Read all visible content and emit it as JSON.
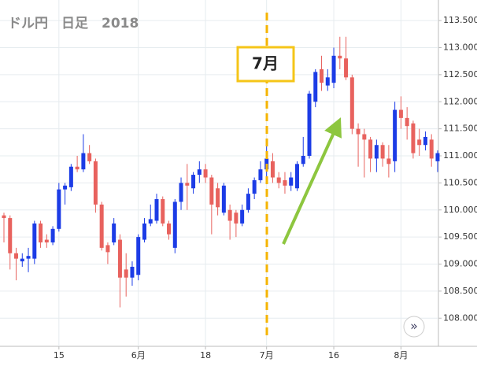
{
  "chart_data": {
    "type": "candlestick",
    "title": "ドル円　日足　2018",
    "annotation": "7月",
    "button": "»",
    "categories": [
      null,
      null,
      null,
      null,
      null,
      null,
      null,
      null,
      null,
      "15",
      null,
      null,
      null,
      null,
      null,
      null,
      null,
      null,
      null,
      null,
      null,
      null,
      "6月",
      null,
      null,
      null,
      null,
      null,
      null,
      null,
      null,
      null,
      null,
      "18",
      null,
      null,
      null,
      null,
      null,
      null,
      null,
      null,
      null,
      "7月",
      null,
      null,
      null,
      null,
      null,
      null,
      null,
      null,
      null,
      null,
      "16",
      null,
      null,
      null,
      null,
      null,
      null,
      null,
      null,
      null,
      null,
      "8月",
      null,
      null,
      null,
      null,
      null,
      null
    ],
    "open": [
      109.9,
      109.85,
      109.2,
      109.05,
      109.1,
      109.1,
      109.75,
      109.45,
      109.4,
      109.65,
      110.38,
      110.42,
      110.8,
      110.75,
      111.05,
      110.9,
      110.1,
      109.35,
      109.4,
      109.45,
      108.9,
      108.75,
      108.8,
      109.45,
      109.75,
      109.8,
      110.2,
      109.75,
      109.3,
      110.15,
      110.5,
      110.4,
      110.65,
      110.75,
      110.6,
      110.4,
      109.95,
      110.0,
      109.95,
      109.75,
      110.0,
      110.3,
      110.55,
      110.75,
      110.9,
      110.6,
      110.55,
      110.45,
      110.4,
      110.85,
      111.0,
      112.0,
      112.6,
      112.3,
      112.35,
      112.85,
      112.8,
      112.45,
      111.5,
      111.4,
      111.3,
      110.95,
      111.2,
      110.95,
      110.9,
      111.85,
      111.7,
      111.6,
      111.3,
      111.2,
      111.3,
      110.9
    ],
    "high": [
      109.95,
      109.9,
      109.3,
      109.2,
      109.3,
      109.8,
      109.8,
      109.55,
      109.7,
      110.5,
      110.5,
      110.85,
      111.0,
      111.4,
      111.2,
      110.95,
      110.15,
      109.4,
      109.85,
      109.55,
      109.2,
      109.05,
      109.55,
      109.85,
      110.1,
      110.3,
      110.25,
      109.8,
      110.2,
      110.6,
      110.85,
      110.7,
      110.9,
      110.85,
      110.65,
      110.5,
      110.5,
      110.1,
      110.0,
      110.1,
      110.4,
      110.6,
      110.9,
      111.2,
      111.05,
      110.7,
      110.7,
      110.7,
      110.9,
      111.35,
      112.2,
      112.6,
      112.85,
      112.6,
      113.0,
      113.2,
      113.2,
      112.5,
      111.6,
      111.5,
      111.35,
      111.3,
      111.25,
      111.2,
      112.0,
      112.1,
      111.9,
      111.65,
      111.5,
      111.45,
      111.4,
      111.1
    ],
    "low": [
      109.4,
      108.9,
      108.7,
      108.95,
      108.85,
      109.0,
      109.3,
      109.3,
      109.35,
      109.6,
      110.1,
      110.35,
      110.7,
      110.7,
      110.85,
      109.95,
      109.25,
      109.0,
      109.35,
      108.2,
      108.4,
      108.6,
      108.7,
      109.4,
      109.7,
      109.75,
      109.7,
      109.45,
      109.2,
      110.0,
      110.0,
      110.3,
      110.5,
      110.5,
      109.55,
      109.9,
      109.9,
      109.45,
      109.5,
      109.7,
      109.95,
      110.2,
      110.5,
      110.6,
      110.5,
      110.4,
      110.3,
      110.35,
      110.35,
      110.8,
      110.95,
      111.9,
      112.2,
      112.2,
      112.25,
      112.6,
      112.4,
      111.4,
      110.8,
      110.6,
      110.7,
      110.7,
      110.8,
      110.6,
      110.7,
      111.5,
      111.3,
      110.95,
      111.0,
      111.1,
      110.8,
      110.7
    ],
    "close": [
      109.85,
      109.2,
      109.1,
      109.1,
      109.15,
      109.75,
      109.4,
      109.4,
      109.65,
      110.38,
      110.45,
      110.8,
      110.75,
      111.05,
      110.9,
      110.1,
      109.3,
      109.22,
      109.75,
      108.75,
      108.75,
      108.95,
      109.5,
      109.75,
      109.83,
      110.2,
      109.75,
      109.55,
      110.15,
      110.5,
      110.45,
      110.65,
      110.75,
      110.6,
      110.1,
      110.05,
      110.45,
      109.8,
      109.75,
      110.0,
      110.3,
      110.55,
      110.75,
      110.95,
      110.6,
      110.5,
      110.45,
      110.6,
      110.85,
      111.0,
      112.15,
      112.55,
      112.35,
      112.45,
      112.85,
      112.8,
      112.45,
      111.5,
      111.4,
      111.3,
      110.95,
      111.2,
      110.95,
      110.85,
      111.85,
      111.7,
      111.55,
      111.05,
      111.2,
      111.35,
      110.95,
      111.05
    ],
    "up_color": "#1c3ce6",
    "down_color": "#e8625e",
    "ylim": [
      107.48,
      113.88
    ],
    "yticks": [
      {
        "value": 108,
        "label": "108.000"
      },
      {
        "value": 108.5,
        "label": "108.500"
      },
      {
        "value": 109,
        "label": "109.000"
      },
      {
        "value": 109.5,
        "label": "109.500"
      },
      {
        "value": 110,
        "label": "110.000"
      },
      {
        "value": 110.5,
        "label": "110.500"
      },
      {
        "value": 111,
        "label": "111.000"
      },
      {
        "value": 111.5,
        "label": "111.500"
      },
      {
        "value": 112,
        "label": "112.000"
      },
      {
        "value": 112.5,
        "label": "112.500"
      },
      {
        "value": 113,
        "label": "113.000"
      },
      {
        "value": 113.5,
        "label": "113.500"
      }
    ],
    "grid": true
  }
}
